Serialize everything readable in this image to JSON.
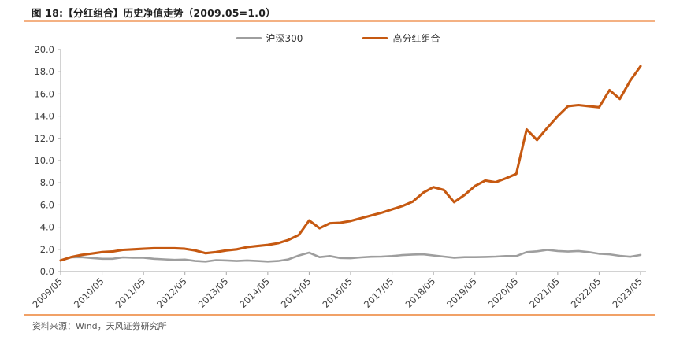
{
  "figure": {
    "title": "图 18:【分红组合】历史净值走势（2009.05=1.0）",
    "source": "资料来源：Wind，天风证券研究所"
  },
  "colors": {
    "accent_rule_top": "#F4B183",
    "accent_rule_bottom": "#F1A167",
    "axis_line": "#A6A6A6",
    "tick_label": "#404040",
    "title_text": "#1f1f1f",
    "source_text": "#595959"
  },
  "chart_data": {
    "type": "line",
    "title": "图 18:【分红组合】历史净值走势（2009.05=1.0）",
    "xlabel": "",
    "ylabel": "",
    "ylim": [
      0,
      20
    ],
    "grid": false,
    "legend_position": "top-center",
    "yticks": [
      "0.0",
      "2.0",
      "4.0",
      "6.0",
      "8.0",
      "10.0",
      "12.0",
      "14.0",
      "16.0",
      "18.0",
      "20.0"
    ],
    "xticks": [
      "2009/05",
      "2010/05",
      "2011/05",
      "2012/05",
      "2013/05",
      "2014/05",
      "2015/05",
      "2016/05",
      "2017/05",
      "2018/05",
      "2019/05",
      "2020/05",
      "2021/05",
      "2022/05",
      "2023/05"
    ],
    "x": [
      "2009/05",
      "2009/08",
      "2009/11",
      "2010/02",
      "2010/05",
      "2010/08",
      "2010/11",
      "2011/02",
      "2011/05",
      "2011/08",
      "2011/11",
      "2012/02",
      "2012/05",
      "2012/08",
      "2012/11",
      "2013/02",
      "2013/05",
      "2013/08",
      "2013/11",
      "2014/02",
      "2014/05",
      "2014/08",
      "2014/11",
      "2015/02",
      "2015/05",
      "2015/08",
      "2015/11",
      "2016/02",
      "2016/05",
      "2016/08",
      "2016/11",
      "2017/02",
      "2017/05",
      "2017/08",
      "2017/11",
      "2018/02",
      "2018/05",
      "2018/08",
      "2018/11",
      "2019/02",
      "2019/05",
      "2019/08",
      "2019/11",
      "2020/02",
      "2020/05",
      "2020/08",
      "2020/11",
      "2021/02",
      "2021/05",
      "2021/08",
      "2021/11",
      "2022/02",
      "2022/05",
      "2022/08",
      "2022/11",
      "2023/02",
      "2023/05"
    ],
    "series": [
      {
        "name": "沪深300",
        "color": "#9E9E9E",
        "stroke_width": 2.6,
        "values": [
          1.0,
          1.28,
          1.3,
          1.22,
          1.15,
          1.15,
          1.28,
          1.25,
          1.25,
          1.15,
          1.1,
          1.05,
          1.08,
          0.95,
          0.9,
          1.03,
          1.0,
          0.95,
          1.0,
          0.95,
          0.9,
          0.95,
          1.1,
          1.45,
          1.7,
          1.3,
          1.4,
          1.22,
          1.2,
          1.28,
          1.33,
          1.35,
          1.4,
          1.48,
          1.53,
          1.55,
          1.45,
          1.35,
          1.25,
          1.3,
          1.3,
          1.32,
          1.35,
          1.4,
          1.4,
          1.75,
          1.82,
          1.95,
          1.85,
          1.8,
          1.85,
          1.75,
          1.6,
          1.55,
          1.42,
          1.33,
          1.5
        ]
      },
      {
        "name": "高分红组合",
        "color": "#C65911",
        "stroke_width": 3.1,
        "values": [
          1.0,
          1.3,
          1.5,
          1.62,
          1.75,
          1.8,
          1.95,
          2.0,
          2.05,
          2.1,
          2.1,
          2.1,
          2.05,
          1.9,
          1.65,
          1.75,
          1.9,
          2.0,
          2.2,
          2.3,
          2.4,
          2.55,
          2.85,
          3.3,
          4.6,
          3.9,
          4.35,
          4.4,
          4.55,
          4.8,
          5.05,
          5.3,
          5.6,
          5.9,
          6.3,
          7.1,
          7.6,
          7.35,
          6.25,
          6.9,
          7.7,
          8.2,
          8.05,
          8.4,
          8.8,
          12.8,
          11.85,
          12.95,
          14.0,
          14.9,
          15.0,
          14.9,
          14.8,
          16.35,
          15.55,
          17.2,
          18.5
        ]
      }
    ]
  }
}
